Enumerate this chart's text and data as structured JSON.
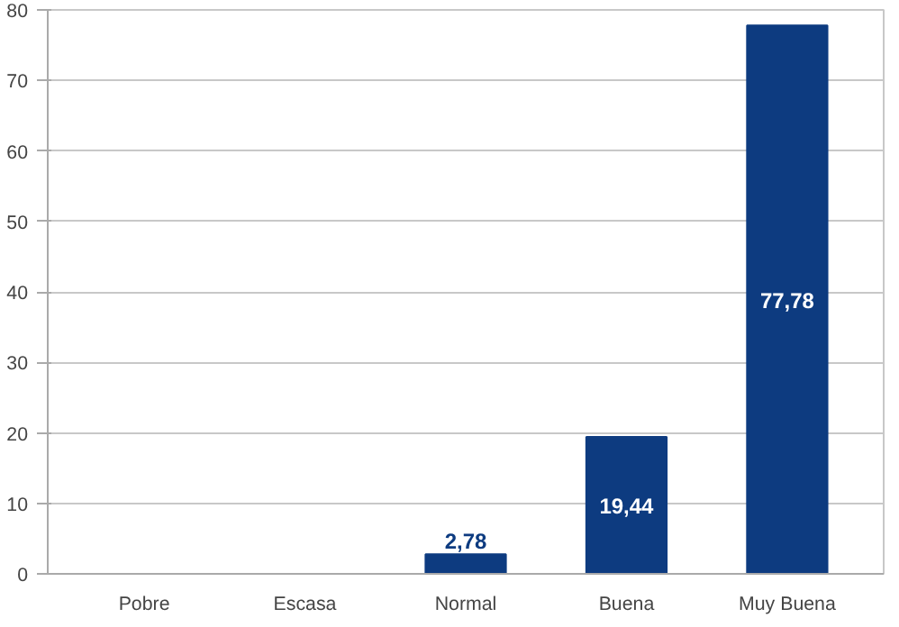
{
  "chart_data": {
    "type": "bar",
    "categories": [
      "Pobre",
      "Escasa",
      "Normal",
      "Buena",
      "Muy Buena"
    ],
    "values": [
      0,
      0,
      2.78,
      19.44,
      77.78
    ],
    "color": "#0d3b80",
    "value_labels": [
      null,
      null,
      "2,78",
      "19,44",
      "77,78"
    ],
    "ylim": [
      0,
      80
    ],
    "yticks": [
      0,
      10,
      20,
      30,
      40,
      50,
      60,
      70,
      80
    ],
    "grid": "y"
  }
}
